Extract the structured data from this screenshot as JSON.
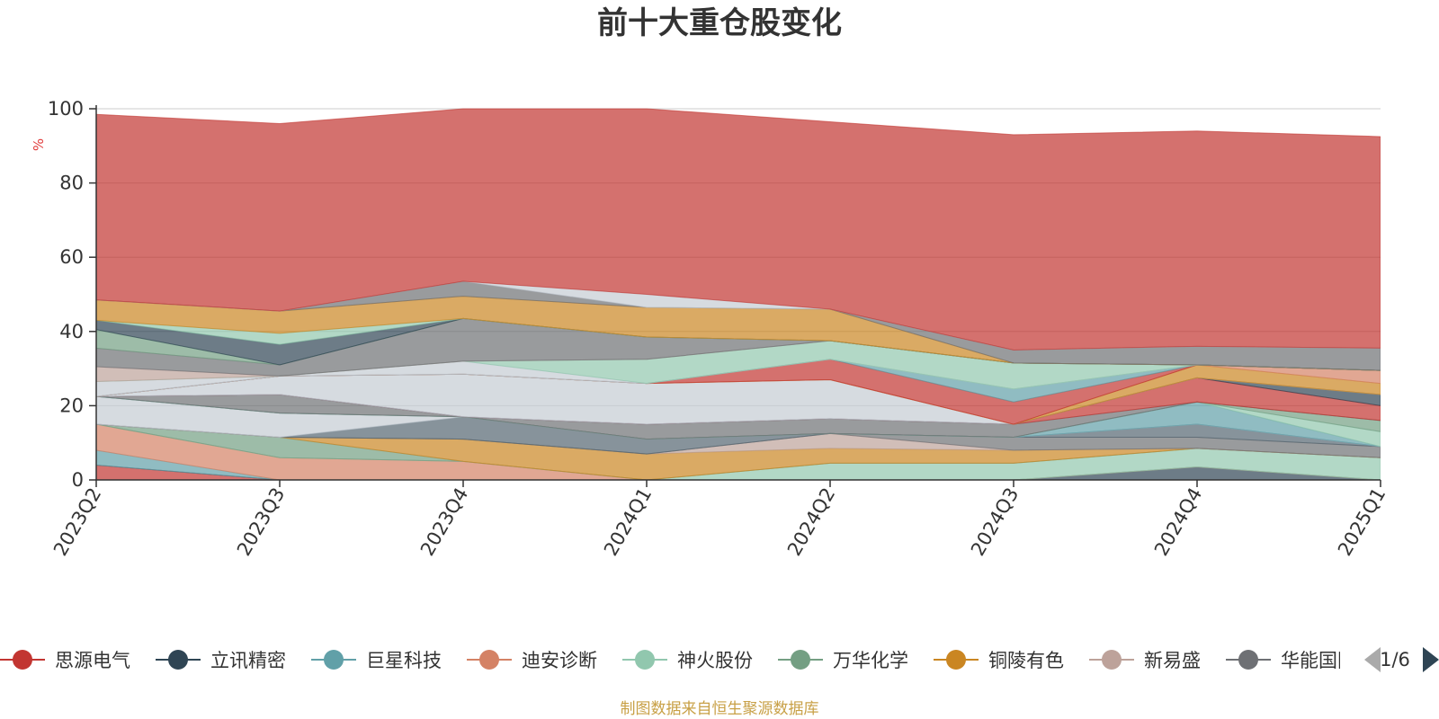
{
  "chart_data": {
    "type": "area",
    "stacked": true,
    "title": "前十大重仓股变化",
    "ylabel": "%",
    "ylim": [
      0,
      100
    ],
    "yticks": [
      0,
      20,
      40,
      60,
      80,
      100
    ],
    "x": [
      "2023Q2",
      "2023Q3",
      "2023Q4",
      "2024Q1",
      "2024Q2",
      "2024Q3",
      "2024Q4",
      "2025Q1"
    ],
    "series": [
      {
        "name": "思源电气",
        "color": "#c23531",
        "values": [
          4,
          0,
          0,
          0,
          0,
          0,
          0,
          0
        ]
      },
      {
        "name": "立讯精密",
        "color": "#2f4554",
        "values": [
          0,
          0,
          0,
          0,
          0,
          0,
          3.5,
          0
        ]
      },
      {
        "name": "巨星科技",
        "color": "#61a0a8",
        "values": [
          4,
          0,
          0,
          0,
          0,
          0,
          0,
          0
        ]
      },
      {
        "name": "迪安诊断",
        "color": "#d48265",
        "values": [
          7,
          6,
          5,
          0,
          0,
          0,
          0,
          0
        ]
      },
      {
        "name": "神火股份",
        "color": "#91c7ae",
        "values": [
          0,
          0,
          0,
          0,
          4.5,
          4.5,
          5,
          6
        ]
      },
      {
        "name": "万华化学",
        "color": "#749f83",
        "values": [
          0,
          5.5,
          0,
          0,
          0,
          0,
          0,
          0
        ]
      },
      {
        "name": "铜陵有色",
        "color": "#ca8622",
        "values": [
          0,
          0,
          6,
          7,
          4,
          3.5,
          0,
          0
        ]
      },
      {
        "name": "新易盛",
        "color": "#bda29a",
        "values": [
          0,
          0,
          0,
          0,
          4,
          0,
          0,
          0
        ]
      },
      {
        "name": "华能国际",
        "color": "#6e7074",
        "values": [
          0,
          0,
          0,
          0,
          0,
          3.5,
          3,
          3
        ]
      },
      {
        "name": "",
        "color": "#546570",
        "values": [
          0,
          0,
          6,
          4,
          0,
          0,
          3.5,
          0
        ]
      },
      {
        "name": "",
        "color": "#c4ccd3",
        "values": [
          7.5,
          6.5,
          0,
          0,
          0,
          0,
          0,
          0
        ]
      },
      {
        "name": "",
        "color": "#61a0a8",
        "values": [
          0,
          0,
          0,
          0,
          0,
          0,
          6,
          0
        ]
      },
      {
        "name": "",
        "color": "#91c7ae",
        "values": [
          0,
          0,
          0,
          0,
          0,
          0,
          0,
          4
        ]
      },
      {
        "name": "",
        "color": "#749f83",
        "values": [
          0,
          0,
          0,
          0,
          0,
          0,
          0,
          3
        ]
      },
      {
        "name": "",
        "color": "#6e7074",
        "values": [
          0,
          5,
          0,
          4,
          4,
          3.5,
          0,
          0
        ]
      },
      {
        "name": "",
        "color": "#c23531",
        "values": [
          0,
          0,
          0,
          0,
          0,
          0,
          6.5,
          4
        ]
      },
      {
        "name": "",
        "color": "#2f4554",
        "values": [
          0,
          0,
          0,
          0,
          0,
          0,
          0,
          3
        ]
      },
      {
        "name": "",
        "color": "#c4ccd3",
        "values": [
          0,
          5,
          11.5,
          11,
          10.5,
          0,
          0,
          0
        ]
      },
      {
        "name": "",
        "color": "#ca8622",
        "values": [
          0,
          0,
          0,
          0,
          0,
          0,
          3.5,
          3
        ]
      },
      {
        "name": "",
        "color": "#d48265",
        "values": [
          0,
          0,
          0,
          0,
          0,
          0,
          0,
          3.5
        ]
      },
      {
        "name": "",
        "color": "#c23531",
        "values": [
          0,
          0,
          0,
          0,
          5.5,
          6,
          0,
          0
        ]
      },
      {
        "name": "",
        "color": "#61a0a8",
        "values": [
          0,
          0,
          0,
          0,
          0,
          3.5,
          0,
          0
        ]
      },
      {
        "name": "",
        "color": "#c4ccd3",
        "values": [
          4,
          0,
          3.5,
          0,
          0,
          0,
          0,
          0
        ]
      },
      {
        "name": "",
        "color": "#91c7ae",
        "values": [
          0,
          0,
          0,
          6.5,
          5,
          7,
          0,
          0
        ]
      },
      {
        "name": "",
        "color": "#bda29a",
        "values": [
          4,
          0,
          0,
          0,
          0,
          0,
          0,
          0
        ]
      },
      {
        "name": "",
        "color": "#6e7074",
        "values": [
          5,
          3,
          11.5,
          6,
          0,
          0,
          0,
          0
        ]
      },
      {
        "name": "",
        "color": "#749f83",
        "values": [
          5,
          0,
          0,
          0,
          0,
          0,
          0,
          0
        ]
      },
      {
        "name": "",
        "color": "#2f4554",
        "values": [
          2.5,
          5.5,
          0,
          0,
          0,
          0,
          0,
          0
        ]
      },
      {
        "name": "",
        "color": "#91c7ae",
        "values": [
          0,
          3,
          0,
          0,
          0,
          0,
          0,
          0
        ]
      },
      {
        "name": "",
        "color": "#ca8622",
        "values": [
          5.5,
          6,
          6,
          8,
          8.5,
          0,
          0,
          0
        ]
      },
      {
        "name": "",
        "color": "#6e7074",
        "values": [
          0,
          0,
          4,
          0,
          0,
          3.5,
          5,
          6
        ]
      },
      {
        "name": "",
        "color": "#c4ccd3",
        "values": [
          0,
          0,
          0,
          3.5,
          0,
          0,
          0,
          0
        ]
      },
      {
        "name": "",
        "color": "#c23531",
        "values": [
          50,
          50.5,
          46.5,
          50,
          50.5,
          58,
          58,
          57
        ]
      }
    ]
  },
  "legend": {
    "items": [
      {
        "label": "思源电气",
        "color": "#c23531"
      },
      {
        "label": "立讯精密",
        "color": "#2f4554"
      },
      {
        "label": "巨星科技",
        "color": "#61a0a8"
      },
      {
        "label": "迪安诊断",
        "color": "#d48265"
      },
      {
        "label": "神火股份",
        "color": "#91c7ae"
      },
      {
        "label": "万华化学",
        "color": "#749f83"
      },
      {
        "label": "铜陵有色",
        "color": "#ca8622"
      },
      {
        "label": "新易盛",
        "color": "#bda29a"
      },
      {
        "label": "华能国际",
        "color": "#6e7074"
      }
    ],
    "page": "1/6",
    "prev_icon": "triangle-left-icon",
    "next_icon": "triangle-right-icon"
  },
  "source": "制图数据来自恒生聚源数据库"
}
